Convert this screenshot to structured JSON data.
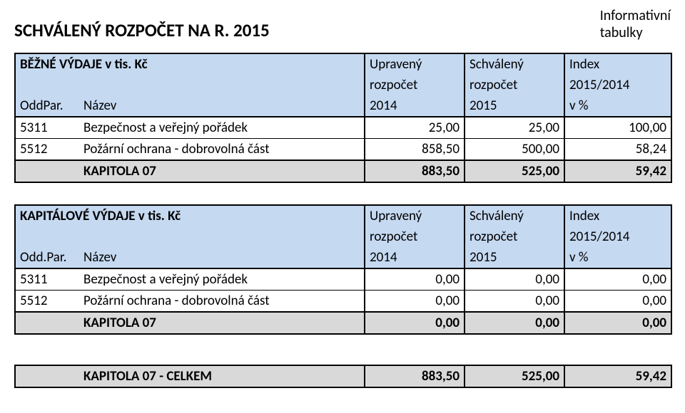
{
  "title": "SCHVÁLENÝ ROZPOČET NA R. 2015",
  "corner": {
    "line1": "Informativní",
    "line2": "tabulky"
  },
  "hdr": {
    "col3": {
      "l1": "Upravený",
      "l2": "rozpočet",
      "l3": "2014"
    },
    "col4": {
      "l1": "Schválený",
      "l2": "rozpočet",
      "l3": "2015"
    },
    "col5": {
      "l1": "Index",
      "l2": "2015/2014",
      "l3": "v %"
    },
    "oddpar1": "OddPar.",
    "oddpar2": "Odd.Par.",
    "nazev": "Název"
  },
  "table1": {
    "heading": "BĚŽNÉ VÝDAJE v tis. Kč",
    "rows": [
      {
        "code": "5311",
        "name": "Bezpečnost a veřejný pořádek",
        "v1": "25,00",
        "v2": "25,00",
        "v3": "100,00"
      },
      {
        "code": "5512",
        "name": "Požární ochrana - dobrovolná část",
        "v1": "858,50",
        "v2": "500,00",
        "v3": "58,24"
      }
    ],
    "sum": {
      "name": "KAPITOLA 07",
      "v1": "883,50",
      "v2": "525,00",
      "v3": "59,42"
    }
  },
  "table2": {
    "heading": "KAPITÁLOVÉ VÝDAJE v tis. Kč",
    "rows": [
      {
        "code": "5311",
        "name": "Bezpečnost a veřejný pořádek",
        "v1": "0,00",
        "v2": "0,00",
        "v3": "0,00"
      },
      {
        "code": "5512",
        "name": "Požární ochrana - dobrovolná část",
        "v1": "0,00",
        "v2": "0,00",
        "v3": "0,00"
      }
    ],
    "sum": {
      "name": "KAPITOLA 07",
      "v1": "0,00",
      "v2": "0,00",
      "v3": "0,00"
    }
  },
  "total": {
    "name": "KAPITOLA 07 - CELKEM",
    "v1": "883,50",
    "v2": "525,00",
    "v3": "59,42"
  }
}
